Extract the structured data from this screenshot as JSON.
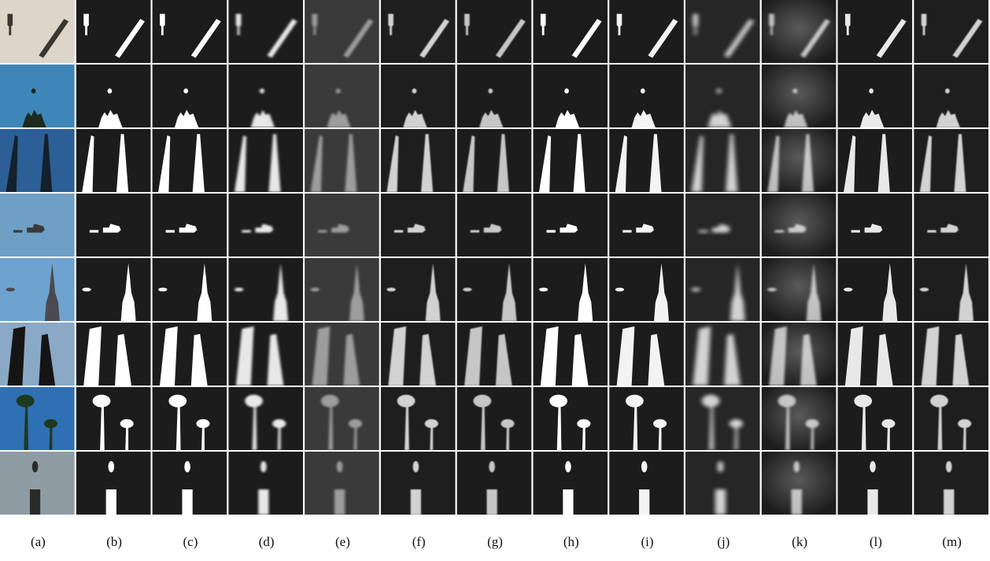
{
  "figure": {
    "column_labels": [
      "(a)",
      "(b)",
      "(c)",
      "(d)",
      "(e)",
      "(f)",
      "(g)",
      "(h)",
      "(i)",
      "(j)",
      "(k)",
      "(l)",
      "(m)"
    ]
  }
}
